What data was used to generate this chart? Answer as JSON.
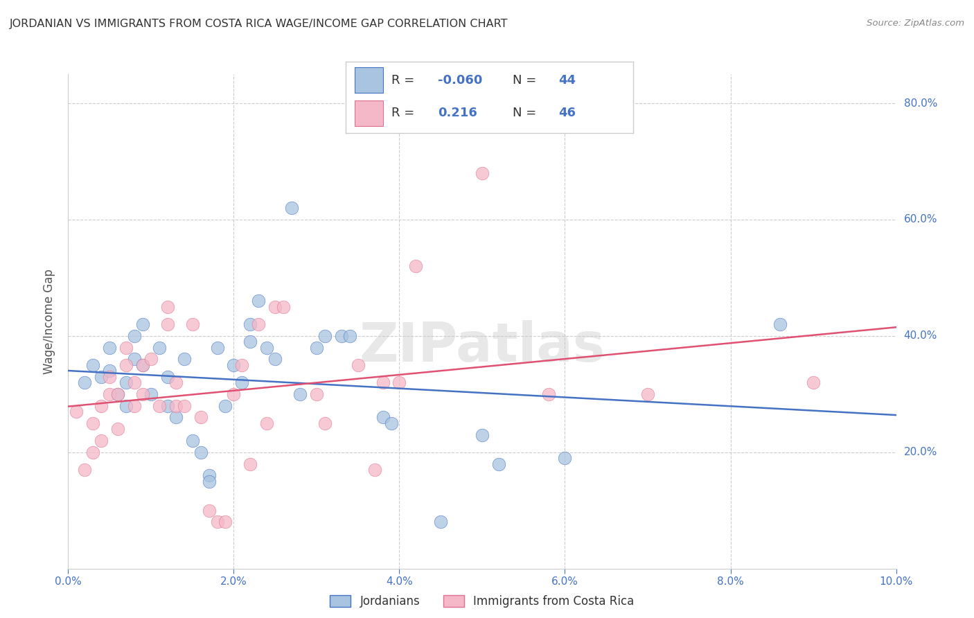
{
  "title": "JORDANIAN VS IMMIGRANTS FROM COSTA RICA WAGE/INCOME GAP CORRELATION CHART",
  "source": "Source: ZipAtlas.com",
  "ylabel": "Wage/Income Gap",
  "xlim": [
    0.0,
    0.1
  ],
  "ylim": [
    0.0,
    0.85
  ],
  "yticks": [
    0.2,
    0.4,
    0.6,
    0.8
  ],
  "ytick_labels": [
    "20.0%",
    "40.0%",
    "60.0%",
    "80.0%"
  ],
  "xticks": [
    0.0,
    0.02,
    0.04,
    0.06,
    0.08,
    0.1
  ],
  "xtick_labels": [
    "0.0%",
    "2.0%",
    "4.0%",
    "6.0%",
    "8.0%",
    "10.0%"
  ],
  "blue_fill": "#a8c4e0",
  "pink_fill": "#f4b8c8",
  "blue_edge": "#4472c4",
  "pink_edge": "#e07090",
  "blue_line": "#4472c4",
  "pink_line": "#e05070",
  "blue_label": "Jordanians",
  "pink_label": "Immigrants from Costa Rica",
  "R_blue": -0.06,
  "N_blue": 44,
  "R_pink": 0.216,
  "N_pink": 46,
  "watermark": "ZIPatlas",
  "bg": "#ffffff",
  "grid_color": "#cccccc",
  "title_color": "#333333",
  "ylabel_color": "#555555",
  "tick_color": "#4472c4",
  "legend_text_dark": "#333333",
  "legend_text_blue": "#4472c4",
  "blue_scatter": [
    [
      0.002,
      0.32
    ],
    [
      0.003,
      0.35
    ],
    [
      0.004,
      0.33
    ],
    [
      0.005,
      0.38
    ],
    [
      0.005,
      0.34
    ],
    [
      0.006,
      0.3
    ],
    [
      0.007,
      0.32
    ],
    [
      0.007,
      0.28
    ],
    [
      0.008,
      0.36
    ],
    [
      0.008,
      0.4
    ],
    [
      0.009,
      0.42
    ],
    [
      0.009,
      0.35
    ],
    [
      0.01,
      0.3
    ],
    [
      0.011,
      0.38
    ],
    [
      0.012,
      0.33
    ],
    [
      0.012,
      0.28
    ],
    [
      0.013,
      0.26
    ],
    [
      0.014,
      0.36
    ],
    [
      0.015,
      0.22
    ],
    [
      0.016,
      0.2
    ],
    [
      0.017,
      0.16
    ],
    [
      0.017,
      0.15
    ],
    [
      0.018,
      0.38
    ],
    [
      0.019,
      0.28
    ],
    [
      0.02,
      0.35
    ],
    [
      0.021,
      0.32
    ],
    [
      0.022,
      0.42
    ],
    [
      0.022,
      0.39
    ],
    [
      0.023,
      0.46
    ],
    [
      0.024,
      0.38
    ],
    [
      0.025,
      0.36
    ],
    [
      0.027,
      0.62
    ],
    [
      0.028,
      0.3
    ],
    [
      0.03,
      0.38
    ],
    [
      0.031,
      0.4
    ],
    [
      0.033,
      0.4
    ],
    [
      0.034,
      0.4
    ],
    [
      0.038,
      0.26
    ],
    [
      0.039,
      0.25
    ],
    [
      0.045,
      0.08
    ],
    [
      0.05,
      0.23
    ],
    [
      0.052,
      0.18
    ],
    [
      0.06,
      0.19
    ],
    [
      0.086,
      0.42
    ]
  ],
  "pink_scatter": [
    [
      0.001,
      0.27
    ],
    [
      0.002,
      0.17
    ],
    [
      0.003,
      0.2
    ],
    [
      0.003,
      0.25
    ],
    [
      0.004,
      0.22
    ],
    [
      0.004,
      0.28
    ],
    [
      0.005,
      0.3
    ],
    [
      0.005,
      0.33
    ],
    [
      0.006,
      0.24
    ],
    [
      0.006,
      0.3
    ],
    [
      0.007,
      0.35
    ],
    [
      0.007,
      0.38
    ],
    [
      0.008,
      0.28
    ],
    [
      0.008,
      0.32
    ],
    [
      0.009,
      0.3
    ],
    [
      0.009,
      0.35
    ],
    [
      0.01,
      0.36
    ],
    [
      0.011,
      0.28
    ],
    [
      0.012,
      0.42
    ],
    [
      0.012,
      0.45
    ],
    [
      0.013,
      0.28
    ],
    [
      0.013,
      0.32
    ],
    [
      0.014,
      0.28
    ],
    [
      0.015,
      0.42
    ],
    [
      0.016,
      0.26
    ],
    [
      0.017,
      0.1
    ],
    [
      0.018,
      0.08
    ],
    [
      0.019,
      0.08
    ],
    [
      0.02,
      0.3
    ],
    [
      0.021,
      0.35
    ],
    [
      0.022,
      0.18
    ],
    [
      0.023,
      0.42
    ],
    [
      0.024,
      0.25
    ],
    [
      0.025,
      0.45
    ],
    [
      0.026,
      0.45
    ],
    [
      0.03,
      0.3
    ],
    [
      0.031,
      0.25
    ],
    [
      0.035,
      0.35
    ],
    [
      0.038,
      0.32
    ],
    [
      0.04,
      0.32
    ],
    [
      0.042,
      0.52
    ],
    [
      0.05,
      0.68
    ],
    [
      0.058,
      0.3
    ],
    [
      0.07,
      0.3
    ],
    [
      0.09,
      0.32
    ],
    [
      0.037,
      0.17
    ]
  ]
}
